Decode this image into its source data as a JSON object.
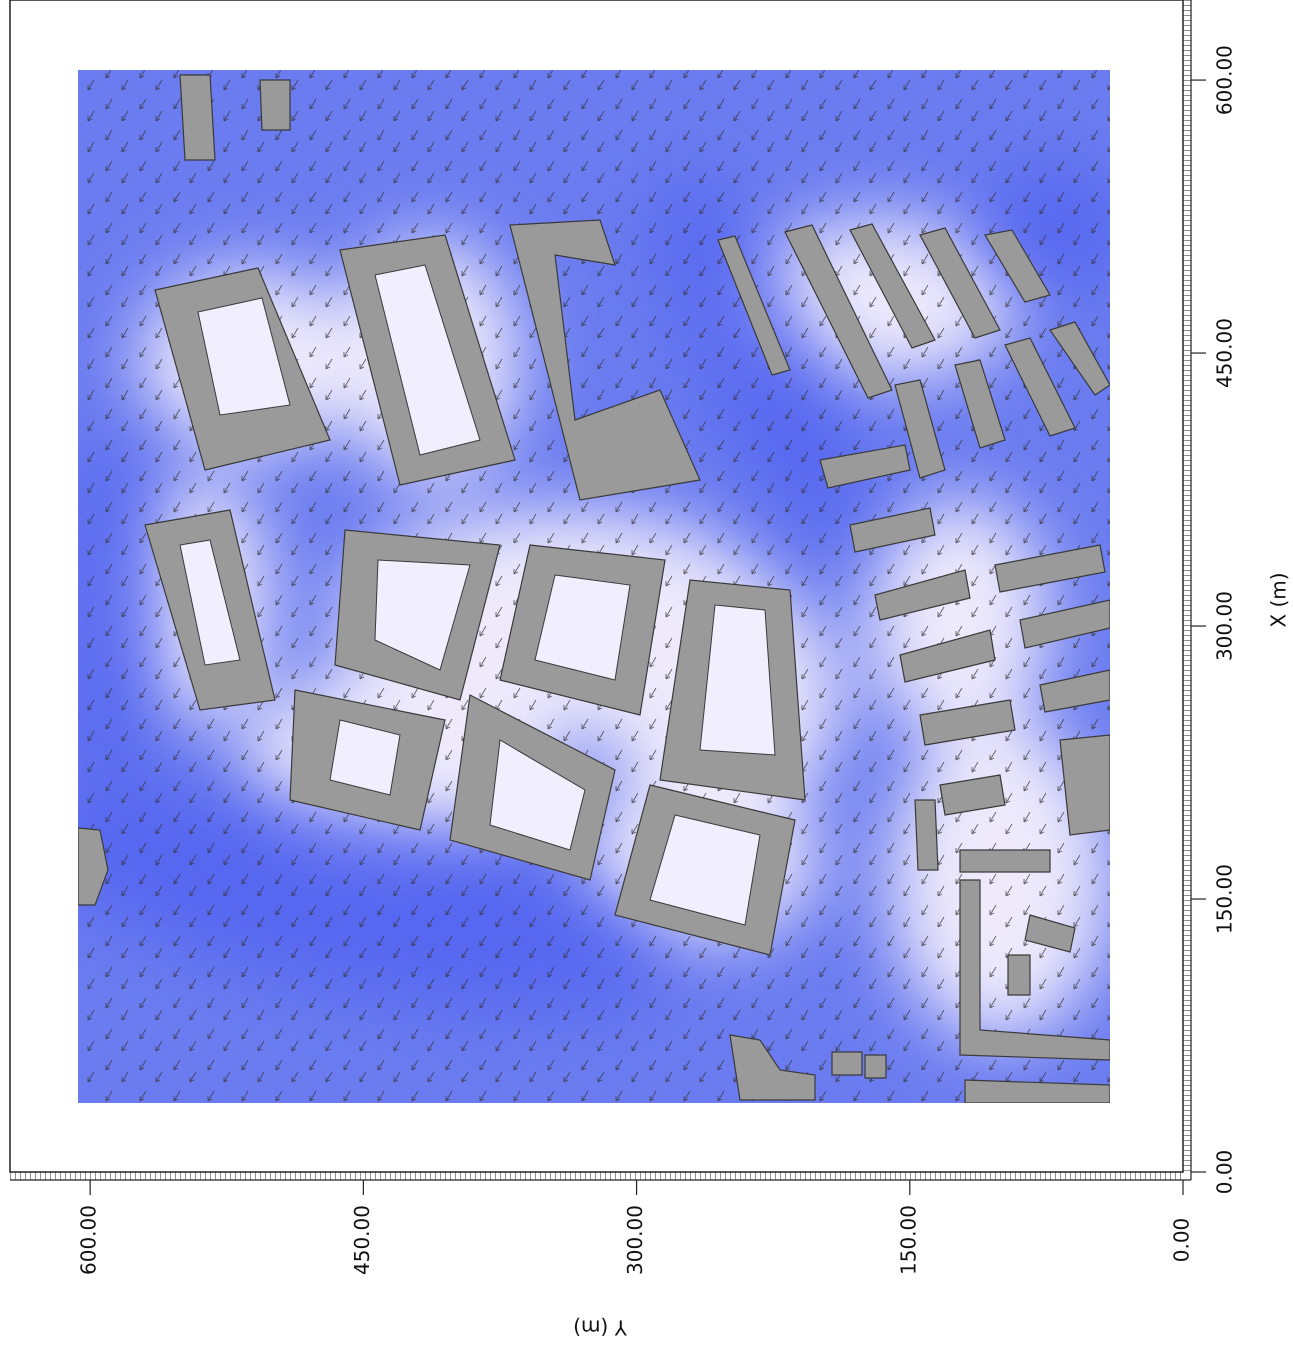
{
  "chart_data": {
    "type": "field",
    "x_label": "X (m)",
    "y_label": "Y (m)",
    "xlim": [
      0,
      644
    ],
    "ylim": [
      0,
      644
    ],
    "xticks": [
      {
        "value": 0,
        "label": "0.00"
      },
      {
        "value": 150,
        "label": "150.00"
      },
      {
        "value": 300,
        "label": "300.00"
      },
      {
        "value": 450,
        "label": "450.00"
      },
      {
        "value": 600,
        "label": "600.00"
      }
    ],
    "yticks": [
      {
        "value": 0,
        "label": "0.00"
      },
      {
        "value": 150,
        "label": "150.00"
      },
      {
        "value": 300,
        "label": "300.00"
      },
      {
        "value": 450,
        "label": "450.00"
      },
      {
        "value": 600,
        "label": "600.00"
      }
    ],
    "field_color": "#6b7cf0"
  }
}
